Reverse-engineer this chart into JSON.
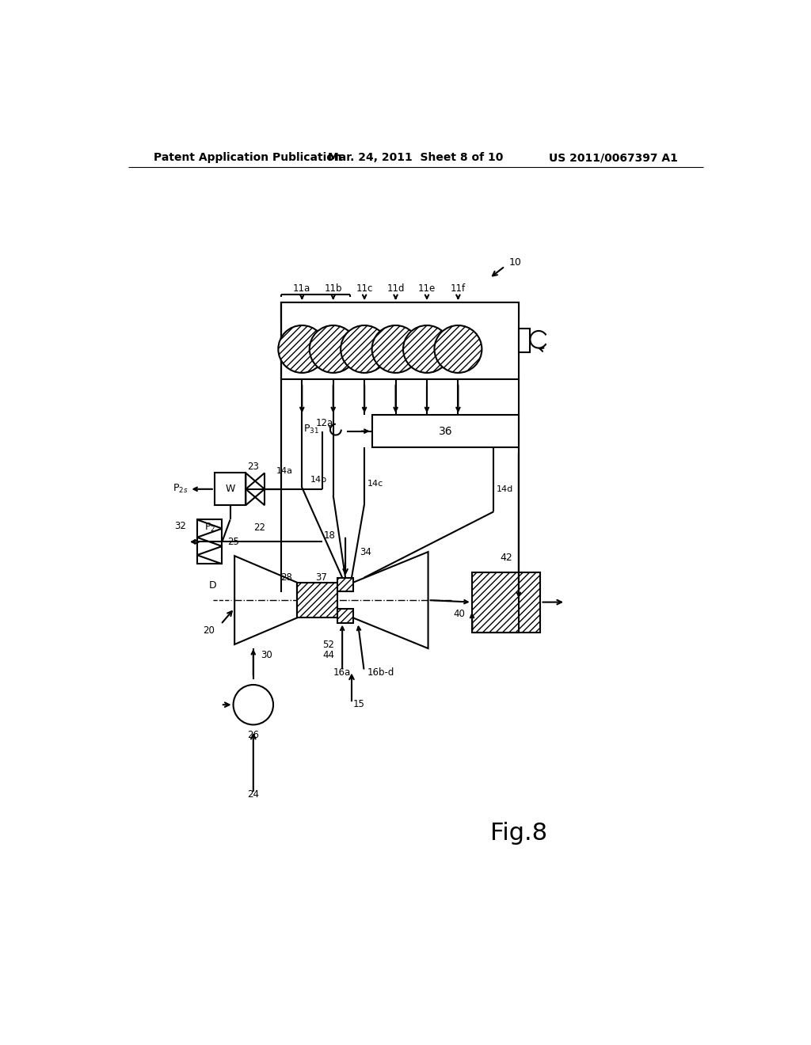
{
  "background_color": "#ffffff",
  "header_left": "Patent Application Publication",
  "header_mid": "Mar. 24, 2011  Sheet 8 of 10",
  "header_right": "US 2011/0067397 A1",
  "fig_label": "Fig.8"
}
